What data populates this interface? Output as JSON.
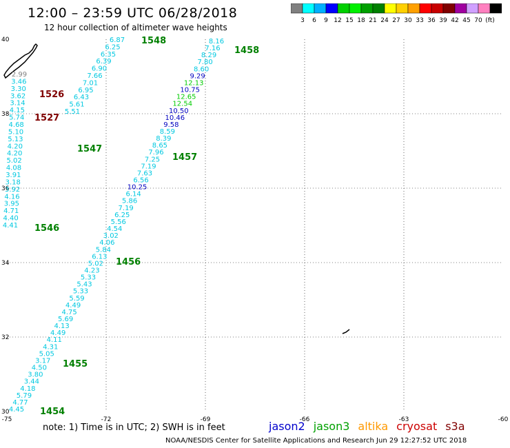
{
  "title": "12:00 – 23:59 UTC 06/28/2018",
  "subtitle": "12 hour collection of altimeter wave heights",
  "scale": {
    "colors": [
      "#808080",
      "#00ffff",
      "#00b0ff",
      "#0000ff",
      "#00d000",
      "#00f000",
      "#00a000",
      "#008000",
      "#ffff00",
      "#ffd000",
      "#ffa000",
      "#ff0000",
      "#c80000",
      "#800000",
      "#a000a0",
      "#d0a0ff",
      "#ff80c0",
      "#000000"
    ],
    "labels": [
      "3",
      "6",
      "9",
      "12",
      "15",
      "18",
      "21",
      "24",
      "27",
      "30",
      "33",
      "36",
      "39",
      "42",
      "45",
      "70",
      "(ft)"
    ]
  },
  "axes": {
    "x_ticks": [
      "-75",
      "-72",
      "-69",
      "-66",
      "-63",
      "-60"
    ],
    "y_ticks": [
      "40",
      "38",
      "36",
      "34",
      "32",
      "30"
    ],
    "x_range": [
      -75,
      -60
    ],
    "y_range": [
      30,
      40
    ]
  },
  "time_colors": {
    "green": "#008000",
    "red": "#800000"
  },
  "track_colors": {
    "cyan": "#00c8e0",
    "blue": "#0000c0",
    "green": "#00cc00",
    "gray": "#808080"
  },
  "tracks": [
    {
      "name": "left track",
      "points": [
        {
          "v": "2.99",
          "c": "gray"
        },
        {
          "v": "3.46",
          "c": "cyan"
        },
        {
          "v": "3.30",
          "c": "cyan"
        },
        {
          "v": "3.62",
          "c": "cyan"
        },
        {
          "v": "3.14",
          "c": "cyan"
        },
        {
          "v": "4.15",
          "c": "cyan"
        },
        {
          "v": "5.74",
          "c": "cyan"
        },
        {
          "v": "4.68",
          "c": "cyan"
        },
        {
          "v": "5.10",
          "c": "cyan"
        },
        {
          "v": "5.13",
          "c": "cyan"
        },
        {
          "v": "4.20",
          "c": "cyan"
        },
        {
          "v": "4.20",
          "c": "cyan"
        },
        {
          "v": "5.02",
          "c": "cyan"
        },
        {
          "v": "4.08",
          "c": "cyan"
        },
        {
          "v": "3.91",
          "c": "cyan"
        },
        {
          "v": "3.18",
          "c": "cyan"
        },
        {
          "v": "3.92",
          "c": "cyan"
        },
        {
          "v": "4.16",
          "c": "cyan"
        },
        {
          "v": "3.95",
          "c": "cyan"
        },
        {
          "v": "4.71",
          "c": "cyan"
        },
        {
          "v": "4.40",
          "c": "cyan"
        },
        {
          "v": "4.41",
          "c": "cyan"
        }
      ]
    },
    {
      "name": "mid-upper track",
      "points": [
        {
          "v": "6.87",
          "c": "cyan"
        },
        {
          "v": "6.25",
          "c": "cyan"
        },
        {
          "v": "6.35",
          "c": "cyan"
        },
        {
          "v": "6.39",
          "c": "cyan"
        },
        {
          "v": "6.90",
          "c": "cyan"
        },
        {
          "v": "7.66",
          "c": "cyan"
        },
        {
          "v": "7.01",
          "c": "cyan"
        },
        {
          "v": "6.95",
          "c": "cyan"
        },
        {
          "v": "6.43",
          "c": "cyan"
        },
        {
          "v": "5.61",
          "c": "cyan"
        },
        {
          "v": "5.51",
          "c": "cyan"
        }
      ]
    },
    {
      "name": "right track",
      "points": [
        {
          "v": "8.16",
          "c": "cyan"
        },
        {
          "v": "7.16",
          "c": "cyan"
        },
        {
          "v": "8.29",
          "c": "cyan"
        },
        {
          "v": "7.80",
          "c": "cyan"
        },
        {
          "v": "8.60",
          "c": "cyan"
        },
        {
          "v": "9.29",
          "c": "blue"
        },
        {
          "v": "12.13",
          "c": "green"
        },
        {
          "v": "10.75",
          "c": "blue"
        },
        {
          "v": "12.65",
          "c": "green"
        },
        {
          "v": "12.54",
          "c": "green"
        },
        {
          "v": "10.50",
          "c": "blue"
        },
        {
          "v": "10.46",
          "c": "blue"
        },
        {
          "v": "9.58",
          "c": "blue"
        },
        {
          "v": "8.59",
          "c": "cyan"
        },
        {
          "v": "8.39",
          "c": "cyan"
        },
        {
          "v": "8.65",
          "c": "cyan"
        },
        {
          "v": "7.96",
          "c": "cyan"
        },
        {
          "v": "7.25",
          "c": "cyan"
        },
        {
          "v": "7.19",
          "c": "cyan"
        },
        {
          "v": "7.63",
          "c": "cyan"
        },
        {
          "v": "6.56",
          "c": "cyan"
        },
        {
          "v": "10.25",
          "c": "blue"
        },
        {
          "v": "6.14",
          "c": "cyan"
        },
        {
          "v": "5.86",
          "c": "cyan"
        },
        {
          "v": "7.19",
          "c": "cyan"
        },
        {
          "v": "6.25",
          "c": "cyan"
        },
        {
          "v": "5.56",
          "c": "cyan"
        },
        {
          "v": "4.54",
          "c": "cyan"
        },
        {
          "v": "3.02",
          "c": "cyan"
        },
        {
          "v": "4.06",
          "c": "cyan"
        },
        {
          "v": "5.84",
          "c": "cyan"
        },
        {
          "v": "6.13",
          "c": "cyan"
        },
        {
          "v": "5.02",
          "c": "cyan"
        },
        {
          "v": "4.23",
          "c": "cyan"
        },
        {
          "v": "5.33",
          "c": "cyan"
        },
        {
          "v": "5.43",
          "c": "cyan"
        },
        {
          "v": "5.33",
          "c": "cyan"
        },
        {
          "v": "5.59",
          "c": "cyan"
        },
        {
          "v": "4.49",
          "c": "cyan"
        },
        {
          "v": "4.75",
          "c": "cyan"
        },
        {
          "v": "5.69",
          "c": "cyan"
        },
        {
          "v": "4.13",
          "c": "cyan"
        },
        {
          "v": "4.49",
          "c": "cyan"
        },
        {
          "v": "4.11",
          "c": "cyan"
        },
        {
          "v": "4.31",
          "c": "cyan"
        },
        {
          "v": "5.05",
          "c": "cyan"
        },
        {
          "v": "3.17",
          "c": "cyan"
        },
        {
          "v": "4.50",
          "c": "cyan"
        },
        {
          "v": "3.80",
          "c": "cyan"
        },
        {
          "v": "3.44",
          "c": "cyan"
        },
        {
          "v": "4.18",
          "c": "cyan"
        },
        {
          "v": "5.79",
          "c": "cyan"
        },
        {
          "v": "4.77",
          "c": "cyan"
        },
        {
          "v": "4.45",
          "c": "cyan"
        }
      ]
    }
  ],
  "time_labels": [
    {
      "t": "1548",
      "c": "green"
    },
    {
      "t": "1458",
      "c": "green"
    },
    {
      "t": "1526",
      "c": "red"
    },
    {
      "t": "1527",
      "c": "red"
    },
    {
      "t": "1547",
      "c": "green"
    },
    {
      "t": "1457",
      "c": "green"
    },
    {
      "t": "1546",
      "c": "green"
    },
    {
      "t": "1456",
      "c": "green"
    },
    {
      "t": "1455",
      "c": "green"
    },
    {
      "t": "1454",
      "c": "green"
    }
  ],
  "note": "note: 1) Time is in UTC; 2) SWH is in feet",
  "satellites": [
    {
      "name": "jason2",
      "color": "#0000cc"
    },
    {
      "name": "jason3",
      "color": "#00a000"
    },
    {
      "name": "altika",
      "color": "#ff9900"
    },
    {
      "name": "cryosat",
      "color": "#cc0000"
    },
    {
      "name": "s3a",
      "color": "#800000"
    }
  ],
  "footer": "NOAA/NESDIS Center for Satellite Applications and Research   Jun 29 12:27:52 UTC 2018"
}
